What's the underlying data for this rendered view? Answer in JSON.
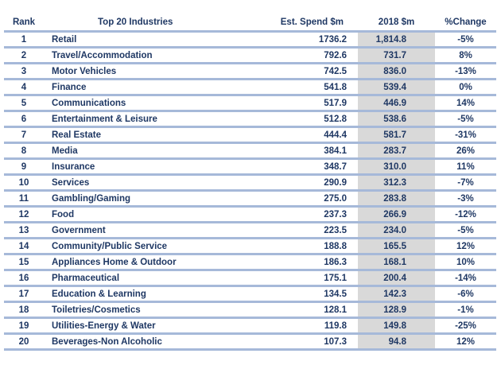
{
  "headers": {
    "rank": "Rank",
    "industry": "Top 20 Industries",
    "est_spend": "Est. Spend $m",
    "spend_2018": "2018  $m",
    "change": "%Change"
  },
  "rows": [
    {
      "rank": "1",
      "industry": "Retail",
      "est": "1736.2",
      "y2018": "1,814.8",
      "change": "-5%"
    },
    {
      "rank": "2",
      "industry": "Travel/Accommodation",
      "est": "792.6",
      "y2018": "731.7",
      "change": "8%"
    },
    {
      "rank": "3",
      "industry": "Motor Vehicles",
      "est": "742.5",
      "y2018": "836.0",
      "change": "-13%"
    },
    {
      "rank": "4",
      "industry": "Finance",
      "est": "541.8",
      "y2018": "539.4",
      "change": "0%"
    },
    {
      "rank": "5",
      "industry": "Communications",
      "est": "517.9",
      "y2018": "446.9",
      "change": "14%"
    },
    {
      "rank": "6",
      "industry": "Entertainment & Leisure",
      "est": "512.8",
      "y2018": "538.6",
      "change": "-5%"
    },
    {
      "rank": "7",
      "industry": "Real Estate",
      "est": "444.4",
      "y2018": "581.7",
      "change": "-31%"
    },
    {
      "rank": "8",
      "industry": "Media",
      "est": "384.1",
      "y2018": "283.7",
      "change": "26%"
    },
    {
      "rank": "9",
      "industry": "Insurance",
      "est": "348.7",
      "y2018": "310.0",
      "change": "11%"
    },
    {
      "rank": "10",
      "industry": "Services",
      "est": "290.9",
      "y2018": "312.3",
      "change": "-7%"
    },
    {
      "rank": "11",
      "industry": "Gambling/Gaming",
      "est": "275.0",
      "y2018": "283.8",
      "change": "-3%"
    },
    {
      "rank": "12",
      "industry": "Food",
      "est": "237.3",
      "y2018": "266.9",
      "change": "-12%"
    },
    {
      "rank": "13",
      "industry": "Government",
      "est": "223.5",
      "y2018": "234.0",
      "change": "-5%"
    },
    {
      "rank": "14",
      "industry": "Community/Public Service",
      "est": "188.8",
      "y2018": "165.5",
      "change": "12%"
    },
    {
      "rank": "15",
      "industry": "Appliances Home & Outdoor",
      "est": "186.3",
      "y2018": "168.1",
      "change": "10%"
    },
    {
      "rank": "16",
      "industry": "Pharmaceutical",
      "est": "175.1",
      "y2018": "200.4",
      "change": "-14%"
    },
    {
      "rank": "17",
      "industry": "Education & Learning",
      "est": "134.5",
      "y2018": "142.3",
      "change": "-6%"
    },
    {
      "rank": "18",
      "industry": "Toiletries/Cosmetics",
      "est": "128.1",
      "y2018": "128.9",
      "change": "-1%"
    },
    {
      "rank": "19",
      "industry": "Utilities-Energy & Water",
      "est": "119.8",
      "y2018": "149.8",
      "change": "-25%"
    },
    {
      "rank": "20",
      "industry": "Beverages-Non Alcoholic",
      "est": "107.3",
      "y2018": "94.8",
      "change": "12%"
    }
  ],
  "colors": {
    "text": "#1f3864",
    "row_divider": "#a6b9d9",
    "shaded_column": "#d9d9d9"
  }
}
